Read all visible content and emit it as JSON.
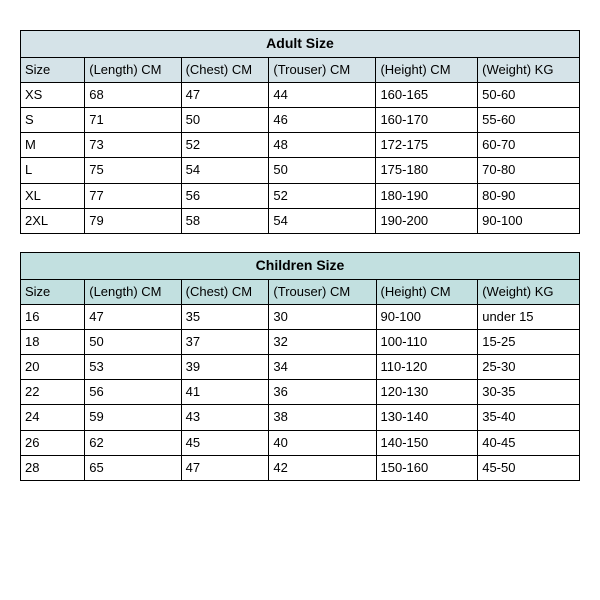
{
  "adult": {
    "title": "Adult Size",
    "header_bg": "#d5e3e8",
    "columns": [
      "Size",
      "(Length) CM",
      "(Chest) CM",
      "(Trouser) CM",
      "(Height) CM",
      "(Weight) KG"
    ],
    "rows": [
      [
        "XS",
        "68",
        "47",
        "44",
        "160-165",
        "50-60"
      ],
      [
        "S",
        "71",
        "50",
        "46",
        "160-170",
        "55-60"
      ],
      [
        "M",
        "73",
        "52",
        "48",
        "172-175",
        "60-70"
      ],
      [
        "L",
        "75",
        "54",
        "50",
        "175-180",
        "70-80"
      ],
      [
        "XL",
        "77",
        "56",
        "52",
        "180-190",
        "80-90"
      ],
      [
        "2XL",
        "79",
        "58",
        "54",
        "190-200",
        "90-100"
      ]
    ]
  },
  "children": {
    "title": "Children Size",
    "header_bg": "#c2e0e0",
    "columns": [
      "Size",
      "(Length) CM",
      "(Chest) CM",
      "(Trouser) CM",
      "(Height) CM",
      "(Weight) KG"
    ],
    "rows": [
      [
        "16",
        "47",
        "35",
        "30",
        "90-100",
        "under 15"
      ],
      [
        "18",
        "50",
        "37",
        "32",
        "100-110",
        "15-25"
      ],
      [
        "20",
        "53",
        "39",
        "34",
        "110-120",
        "25-30"
      ],
      [
        "22",
        "56",
        "41",
        "36",
        "120-130",
        "30-35"
      ],
      [
        "24",
        "59",
        "43",
        "38",
        "130-140",
        "35-40"
      ],
      [
        "26",
        "62",
        "45",
        "40",
        "140-150",
        "40-45"
      ],
      [
        "28",
        "65",
        "47",
        "42",
        "150-160",
        "45-50"
      ]
    ]
  }
}
